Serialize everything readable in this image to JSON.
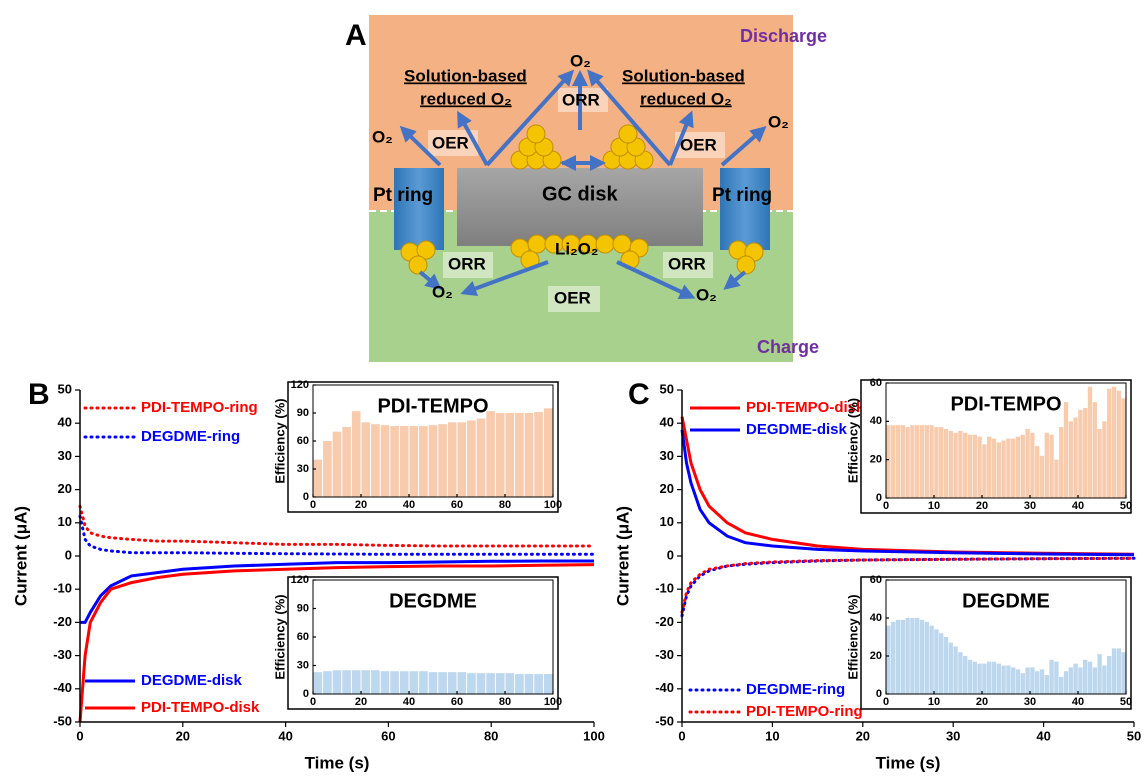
{
  "panel_a": {
    "label": "A",
    "discharge": "Discharge",
    "charge": "Charge",
    "labels": [
      "O₂",
      "ORR",
      "Solution-based",
      "reduced O₂",
      "Solution-based",
      "reduced O₂",
      "O₂",
      "O₂",
      "OER",
      "OER",
      "Pt ring",
      "GC disk",
      "Pt ring",
      "Li₂O₂",
      "ORR",
      "ORR",
      "O₂",
      "O₂",
      "OER"
    ]
  },
  "chart_data": [
    {
      "type": "line",
      "panel_label": "B",
      "xlabel": "Time (s)",
      "ylabel": "Current (μA)",
      "xlim": [
        0,
        100
      ],
      "xticks": [
        0,
        20,
        40,
        60,
        80,
        100
      ],
      "ylim": [
        -50,
        50
      ],
      "yticks": [
        -50,
        -40,
        -30,
        -20,
        -10,
        0,
        10,
        20,
        30,
        40,
        50
      ],
      "x": [
        0,
        1,
        2,
        4,
        6,
        10,
        15,
        20,
        30,
        40,
        50,
        60,
        70,
        80,
        90,
        100
      ],
      "series": [
        {
          "name": "PDI-TEMPO-ring",
          "color": "#ff0000",
          "style": "dotted",
          "values": [
            15,
            9,
            7,
            6,
            5.5,
            5,
            4.5,
            4.5,
            4,
            3.5,
            3.5,
            3.2,
            3,
            3,
            3,
            3
          ]
        },
        {
          "name": "DEGDME-ring",
          "color": "#0000ff",
          "style": "dotted",
          "values": [
            12,
            5,
            3,
            2,
            1.5,
            1,
            1,
            1,
            0.8,
            0.7,
            0.6,
            0.5,
            0.5,
            0.5,
            0.5,
            0.5
          ]
        },
        {
          "name": "DEGDME-disk",
          "color": "#0000ff",
          "style": "solid",
          "values": [
            -20,
            -20,
            -17,
            -12,
            -9,
            -6,
            -5,
            -4,
            -3,
            -2.5,
            -2,
            -2,
            -1.8,
            -1.6,
            -1.5,
            -1.5
          ]
        },
        {
          "name": "PDI-TEMPO-disk",
          "color": "#ff0000",
          "style": "solid",
          "values": [
            -50,
            -30,
            -20,
            -14,
            -10,
            -8,
            -6.5,
            -5.5,
            -4.5,
            -4,
            -3.5,
            -3.2,
            -3,
            -3,
            -2.8,
            -2.6
          ]
        }
      ]
    },
    {
      "type": "bar",
      "title": "PDI-TEMPO",
      "ylabel": "Efficiency (%)",
      "color": "#f8cbad",
      "xlim": [
        0,
        100
      ],
      "xticks": [
        0,
        20,
        40,
        60,
        80,
        100
      ],
      "ylim": [
        0,
        120
      ],
      "yticks": [
        0,
        30,
        60,
        90,
        120
      ],
      "x": [
        2,
        6,
        10,
        14,
        18,
        22,
        26,
        30,
        34,
        38,
        42,
        46,
        50,
        54,
        58,
        62,
        66,
        70,
        74,
        78,
        82,
        86,
        90,
        94,
        98
      ],
      "values": [
        40,
        60,
        70,
        75,
        92,
        80,
        78,
        77,
        76,
        76,
        76,
        76,
        77,
        78,
        80,
        80,
        82,
        84,
        92,
        90,
        90,
        90,
        90,
        91,
        95
      ]
    },
    {
      "type": "bar",
      "title": "DEGDME",
      "ylabel": "Efficiency (%)",
      "color": "#bdd7ee",
      "xlim": [
        0,
        100
      ],
      "xticks": [
        0,
        20,
        40,
        60,
        80,
        100
      ],
      "ylim": [
        0,
        120
      ],
      "yticks": [
        0,
        30,
        60,
        90,
        120
      ],
      "x": [
        2,
        6,
        10,
        14,
        18,
        22,
        26,
        30,
        34,
        38,
        42,
        46,
        50,
        54,
        58,
        62,
        66,
        70,
        74,
        78,
        82,
        86,
        90,
        94,
        98
      ],
      "values": [
        23,
        24,
        25,
        25,
        25,
        25,
        25,
        24,
        24,
        24,
        24,
        24,
        23,
        23,
        23,
        23,
        22,
        22,
        22,
        22,
        22,
        21,
        21,
        21,
        21
      ]
    },
    {
      "type": "line",
      "panel_label": "C",
      "xlabel": "Time (s)",
      "ylabel": "Current (μA)",
      "xlim": [
        0,
        50
      ],
      "xticks": [
        0,
        10,
        20,
        30,
        40,
        50
      ],
      "ylim": [
        -50,
        50
      ],
      "yticks": [
        -50,
        -40,
        -30,
        -20,
        -10,
        0,
        10,
        20,
        30,
        40,
        50
      ],
      "x": [
        0,
        0.5,
        1,
        2,
        3,
        5,
        7,
        10,
        15,
        20,
        30,
        40,
        50
      ],
      "series": [
        {
          "name": "PDI-TEMPO-disk",
          "color": "#ff0000",
          "style": "solid",
          "values": [
            42,
            35,
            28,
            20,
            15,
            10,
            7,
            5,
            3,
            2,
            1.2,
            0.8,
            0.5
          ]
        },
        {
          "name": "DEGDME-disk",
          "color": "#0000ff",
          "style": "solid",
          "values": [
            38,
            28,
            22,
            14,
            10,
            6,
            4,
            3,
            2,
            1.5,
            1,
            0.6,
            0.4
          ]
        },
        {
          "name": "DEGDME-ring",
          "color": "#0000ff",
          "style": "dotted",
          "values": [
            -18,
            -12,
            -9,
            -6,
            -4.5,
            -3,
            -2.5,
            -2,
            -1.5,
            -1.2,
            -1,
            -0.8,
            -0.7
          ]
        },
        {
          "name": "PDI-TEMPO-ring",
          "color": "#ff0000",
          "style": "dotted",
          "values": [
            -17,
            -11,
            -8,
            -5.5,
            -4,
            -3,
            -2.3,
            -1.8,
            -1.4,
            -1.2,
            -1,
            -0.8,
            -0.7
          ]
        }
      ]
    },
    {
      "type": "bar",
      "title": "PDI-TEMPO",
      "ylabel": "Efficiency (%)",
      "color": "#f8cbad",
      "xlim": [
        0,
        50
      ],
      "xticks": [
        0,
        10,
        20,
        30,
        40,
        50
      ],
      "ylim": [
        0,
        60
      ],
      "yticks": [
        0,
        20,
        40,
        60
      ],
      "x": [
        0.5,
        1.5,
        2.5,
        3.5,
        4.5,
        5.5,
        6.5,
        7.5,
        8.5,
        9.5,
        10.5,
        11.5,
        12.5,
        13.5,
        14.5,
        15.5,
        16.5,
        17.5,
        18.5,
        19.5,
        20.5,
        21.5,
        22.5,
        23.5,
        24.5,
        25.5,
        26.5,
        27.5,
        28.5,
        29.5,
        30.5,
        31.5,
        32.5,
        33.5,
        34.5,
        35.5,
        36.5,
        37.5,
        38.5,
        39.5,
        40.5,
        41.5,
        42.5,
        43.5,
        44.5,
        45.5,
        46.5,
        47.5,
        48.5,
        49.5
      ],
      "values": [
        38,
        38,
        38,
        38,
        37,
        38,
        38,
        38,
        38,
        38,
        37,
        37,
        36,
        35,
        34,
        35,
        34,
        33,
        33,
        32,
        28,
        32,
        31,
        29,
        30,
        31,
        31,
        32,
        33,
        36,
        34,
        27,
        22,
        34,
        33,
        20,
        37,
        50,
        40,
        42,
        46,
        47,
        58,
        50,
        36,
        40,
        57,
        58,
        56,
        52
      ]
    },
    {
      "type": "bar",
      "title": "DEGDME",
      "ylabel": "Efficiency (%)",
      "color": "#bdd7ee",
      "xlim": [
        0,
        50
      ],
      "xticks": [
        0,
        10,
        20,
        30,
        40,
        50
      ],
      "ylim": [
        0,
        60
      ],
      "yticks": [
        0,
        20,
        40,
        60
      ],
      "x": [
        0.5,
        1.5,
        2.5,
        3.5,
        4.5,
        5.5,
        6.5,
        7.5,
        8.5,
        9.5,
        10.5,
        11.5,
        12.5,
        13.5,
        14.5,
        15.5,
        16.5,
        17.5,
        18.5,
        19.5,
        20.5,
        21.5,
        22.5,
        23.5,
        24.5,
        25.5,
        26.5,
        27.5,
        28.5,
        29.5,
        30.5,
        31.5,
        32.5,
        33.5,
        34.5,
        35.5,
        36.5,
        37.5,
        38.5,
        39.5,
        40.5,
        41.5,
        42.5,
        43.5,
        44.5,
        45.5,
        46.5,
        47.5,
        48.5,
        49.5
      ],
      "values": [
        36,
        38,
        39,
        39,
        40,
        40,
        40,
        39,
        38,
        36,
        34,
        32,
        30,
        27,
        25,
        22,
        20,
        18,
        17,
        16,
        16,
        17,
        17,
        16,
        15,
        15,
        14,
        13,
        11,
        14,
        14,
        12,
        13,
        10,
        18,
        17,
        9,
        12,
        14,
        16,
        14,
        18,
        17,
        14,
        21,
        15,
        20,
        24,
        24,
        22
      ]
    }
  ]
}
